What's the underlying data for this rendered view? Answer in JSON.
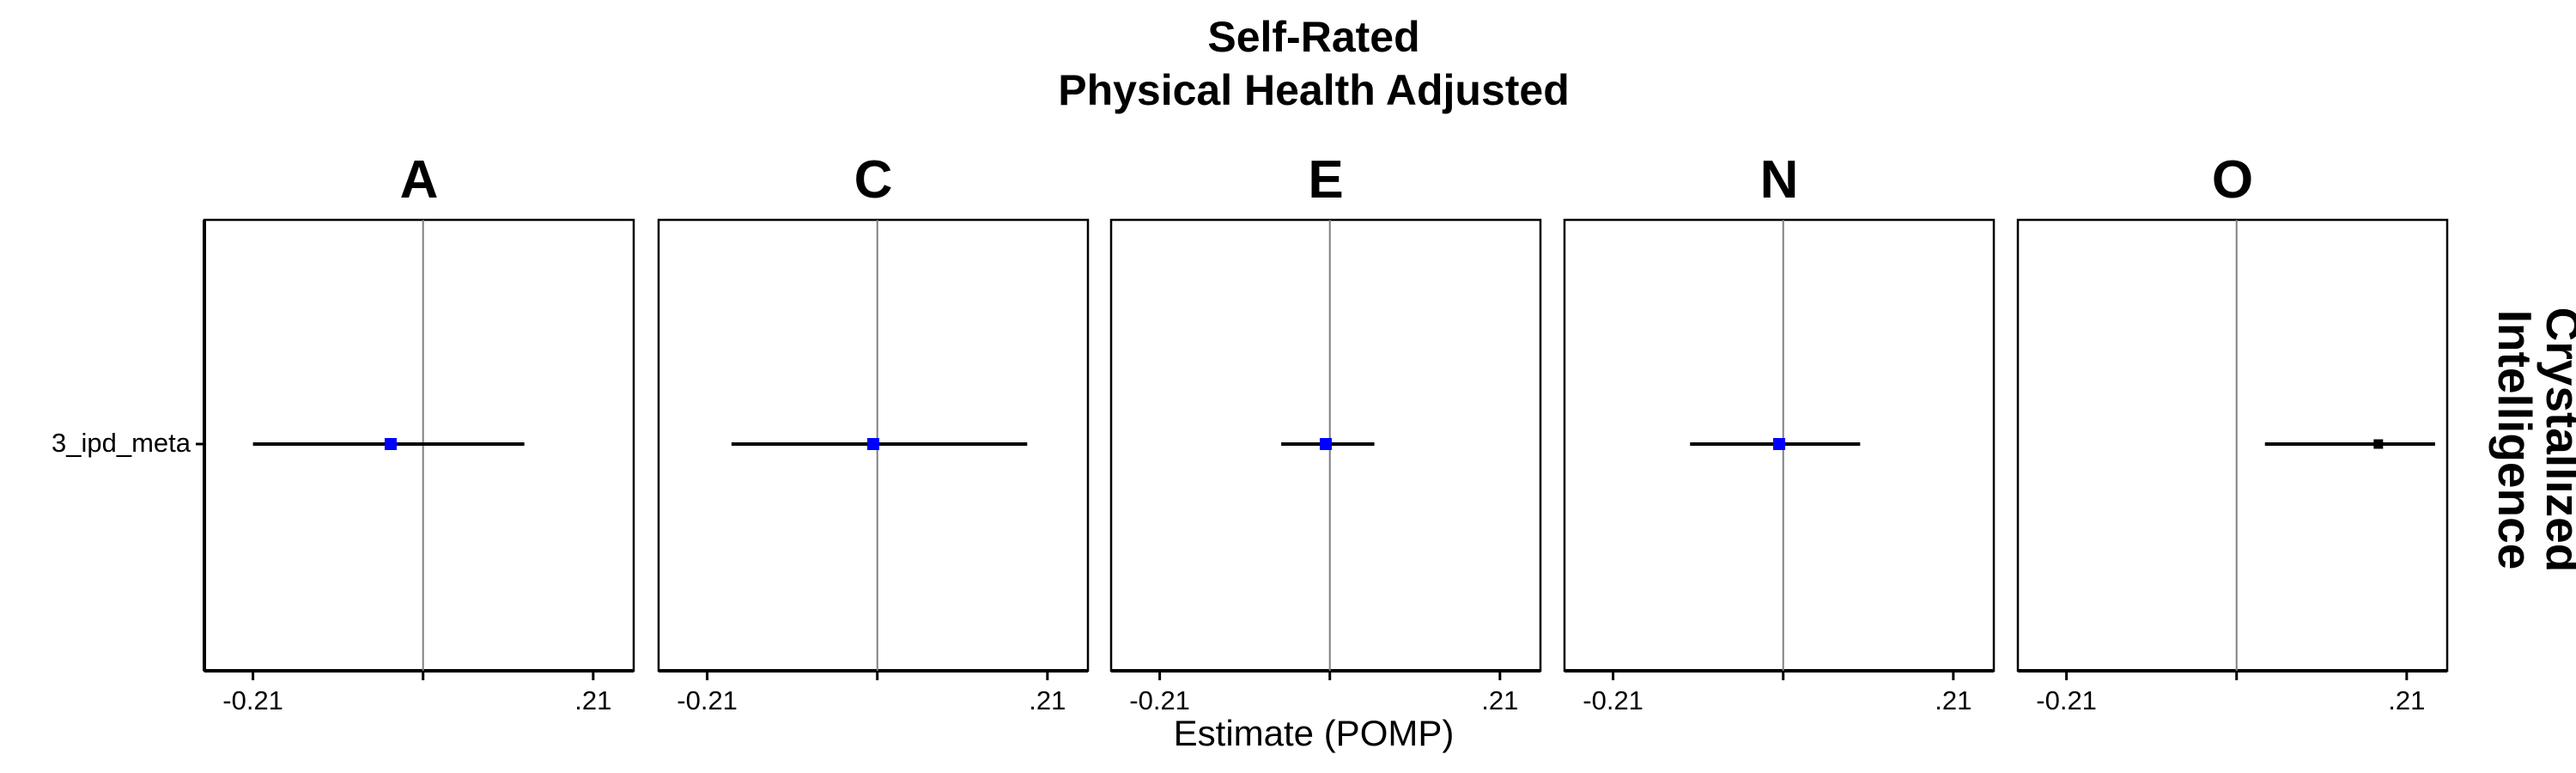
{
  "chart_data": {
    "type": "forest",
    "title_lines": [
      "Self-Rated",
      "Physical Health Adjusted"
    ],
    "facet_row_label_lines": [
      "Crystallized",
      "Intelligence"
    ],
    "xlabel": "Estimate (POMP)",
    "xlim": [
      -0.27,
      0.26
    ],
    "x_ticks": [
      -0.21,
      0,
      0.21
    ],
    "x_tick_labels": [
      "-0.21",
      "",
      ".21"
    ],
    "reference_line": 0,
    "y_categories": [
      "3_ipd_meta"
    ],
    "panels": [
      {
        "facet": "A",
        "estimate": -0.04,
        "ci_low": -0.21,
        "ci_high": 0.125,
        "color": "#0000ff"
      },
      {
        "facet": "C",
        "estimate": -0.005,
        "ci_low": -0.18,
        "ci_high": 0.185,
        "color": "#0000ff"
      },
      {
        "facet": "E",
        "estimate": -0.005,
        "ci_low": -0.06,
        "ci_high": 0.055,
        "color": "#0000ff"
      },
      {
        "facet": "N",
        "estimate": -0.005,
        "ci_low": -0.115,
        "ci_high": 0.095,
        "color": "#0000ff"
      },
      {
        "facet": "O",
        "estimate": 0.175,
        "ci_low": 0.035,
        "ci_high": 0.245,
        "color": "#000000"
      }
    ]
  }
}
